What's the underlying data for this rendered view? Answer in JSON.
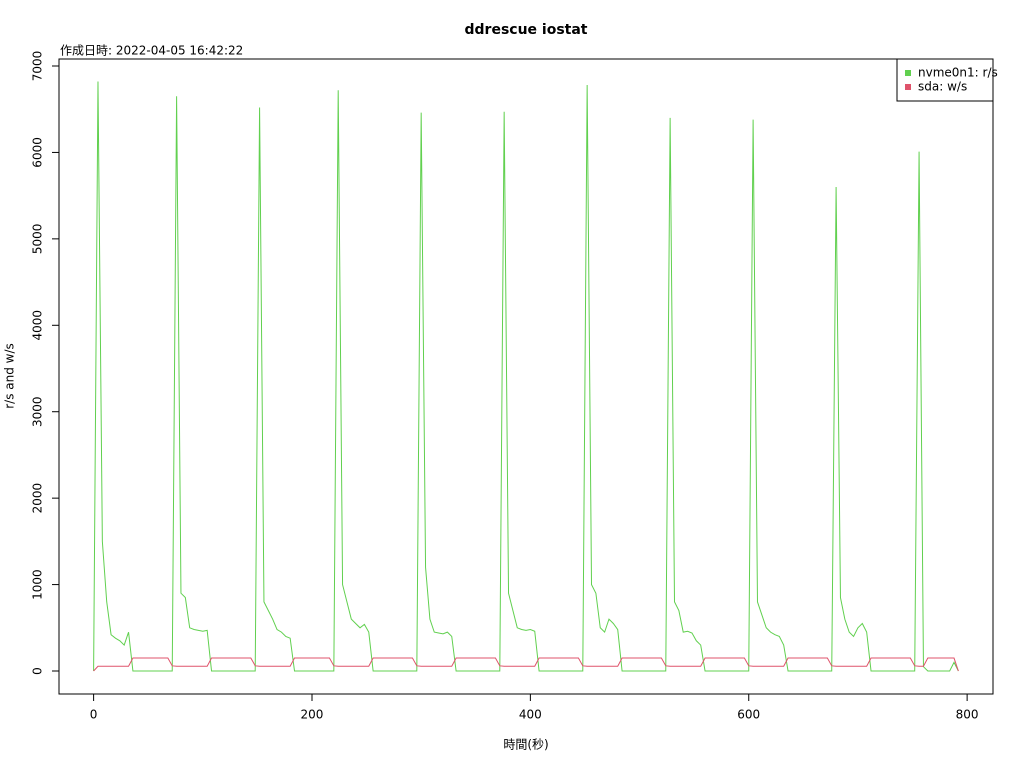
{
  "chart_data": {
    "type": "line",
    "title": "ddrescue iostat",
    "subtitle": "作成日時: 2022-04-05 16:42:22",
    "x_label": "時間(秒)",
    "y_label": "r/s and w/s",
    "xlim": [
      -31.7,
      823.7
    ],
    "ylim": [
      -266,
      7081
    ],
    "xticks": [
      0,
      200,
      400,
      600,
      800
    ],
    "yticks": [
      0,
      1000,
      2000,
      3000,
      4000,
      5000,
      6000,
      7000
    ],
    "legend": "top-right",
    "x": [
      0,
      4,
      8,
      12,
      16,
      20,
      24,
      28,
      32,
      36,
      40,
      44,
      48,
      52,
      56,
      60,
      64,
      68,
      72,
      76,
      80,
      84,
      88,
      92,
      96,
      100,
      104,
      108,
      112,
      116,
      120,
      124,
      128,
      132,
      136,
      140,
      144,
      148,
      152,
      156,
      160,
      164,
      168,
      172,
      176,
      180,
      184,
      188,
      192,
      196,
      200,
      204,
      208,
      212,
      216,
      220,
      224,
      228,
      232,
      236,
      240,
      244,
      248,
      252,
      256,
      260,
      264,
      268,
      272,
      276,
      280,
      284,
      288,
      292,
      296,
      300,
      304,
      308,
      312,
      316,
      320,
      324,
      328,
      332,
      336,
      340,
      344,
      348,
      352,
      356,
      360,
      364,
      368,
      372,
      376,
      380,
      384,
      388,
      392,
      396,
      400,
      404,
      408,
      412,
      416,
      420,
      424,
      428,
      432,
      436,
      440,
      444,
      448,
      452,
      456,
      460,
      464,
      468,
      472,
      476,
      480,
      484,
      488,
      492,
      496,
      500,
      504,
      508,
      512,
      516,
      520,
      524,
      528,
      532,
      536,
      540,
      544,
      548,
      552,
      556,
      560,
      564,
      568,
      572,
      576,
      580,
      584,
      588,
      592,
      596,
      600,
      604,
      608,
      612,
      616,
      620,
      624,
      628,
      632,
      636,
      640,
      644,
      648,
      652,
      656,
      660,
      664,
      668,
      672,
      676,
      680,
      684,
      688,
      692,
      696,
      700,
      704,
      708,
      712,
      716,
      720,
      724,
      728,
      732,
      736,
      740,
      744,
      748,
      752,
      756,
      760,
      764,
      768,
      772,
      776,
      780,
      784,
      788,
      792
    ],
    "series": [
      {
        "name": "nvme0n1: r/s",
        "color": "#61d04f",
        "values": [
          0,
          6820,
          1500,
          800,
          420,
          380,
          350,
          300,
          450,
          0,
          0,
          0,
          0,
          0,
          0,
          0,
          0,
          0,
          0,
          6650,
          900,
          850,
          500,
          480,
          470,
          460,
          470,
          0,
          0,
          0,
          0,
          0,
          0,
          0,
          0,
          0,
          0,
          0,
          6520,
          800,
          700,
          600,
          480,
          450,
          400,
          380,
          0,
          0,
          0,
          0,
          0,
          0,
          0,
          0,
          0,
          0,
          6720,
          1000,
          800,
          600,
          550,
          500,
          540,
          450,
          0,
          0,
          0,
          0,
          0,
          0,
          0,
          0,
          0,
          0,
          0,
          6460,
          1200,
          600,
          450,
          440,
          430,
          450,
          400,
          0,
          0,
          0,
          0,
          0,
          0,
          0,
          0,
          0,
          0,
          0,
          6470,
          900,
          700,
          500,
          480,
          470,
          480,
          460,
          0,
          0,
          0,
          0,
          0,
          0,
          0,
          0,
          0,
          0,
          0,
          6780,
          1000,
          900,
          500,
          450,
          600,
          550,
          480,
          0,
          0,
          0,
          0,
          0,
          0,
          0,
          0,
          0,
          0,
          0,
          6400,
          800,
          700,
          450,
          460,
          440,
          350,
          300,
          0,
          0,
          0,
          0,
          0,
          0,
          0,
          0,
          0,
          0,
          0,
          6380,
          800,
          650,
          500,
          450,
          420,
          400,
          300,
          0,
          0,
          0,
          0,
          0,
          0,
          0,
          0,
          0,
          0,
          0,
          5600,
          850,
          600,
          450,
          400,
          500,
          550,
          450,
          0,
          0,
          0,
          0,
          0,
          0,
          0,
          0,
          0,
          0,
          0,
          6010,
          50,
          0,
          0,
          0,
          0,
          0,
          0,
          100,
          0
        ]
      },
      {
        "name": "sda: w/s",
        "color": "#df536b",
        "values": [
          0,
          55,
          55,
          55,
          55,
          55,
          55,
          55,
          55,
          150,
          150,
          150,
          150,
          150,
          150,
          150,
          150,
          150,
          60,
          55,
          55,
          55,
          55,
          55,
          55,
          55,
          55,
          150,
          150,
          150,
          150,
          150,
          150,
          150,
          150,
          150,
          150,
          60,
          55,
          55,
          55,
          55,
          55,
          55,
          55,
          55,
          150,
          150,
          150,
          150,
          150,
          150,
          150,
          150,
          150,
          60,
          55,
          55,
          55,
          55,
          55,
          55,
          55,
          55,
          150,
          150,
          150,
          150,
          150,
          150,
          150,
          150,
          150,
          150,
          60,
          55,
          55,
          55,
          55,
          55,
          55,
          55,
          55,
          150,
          150,
          150,
          150,
          150,
          150,
          150,
          150,
          150,
          150,
          60,
          55,
          55,
          55,
          55,
          55,
          55,
          55,
          55,
          150,
          150,
          150,
          150,
          150,
          150,
          150,
          150,
          150,
          150,
          60,
          55,
          55,
          55,
          55,
          55,
          55,
          55,
          55,
          150,
          150,
          150,
          150,
          150,
          150,
          150,
          150,
          150,
          150,
          60,
          55,
          55,
          55,
          55,
          55,
          55,
          55,
          55,
          150,
          150,
          150,
          150,
          150,
          150,
          150,
          150,
          150,
          150,
          60,
          55,
          55,
          55,
          55,
          55,
          55,
          55,
          55,
          150,
          150,
          150,
          150,
          150,
          150,
          150,
          150,
          150,
          150,
          60,
          55,
          55,
          55,
          55,
          55,
          55,
          55,
          55,
          150,
          150,
          150,
          150,
          150,
          150,
          150,
          150,
          150,
          150,
          60,
          55,
          55,
          150,
          150,
          150,
          150,
          150,
          150,
          150,
          0
        ]
      }
    ]
  }
}
